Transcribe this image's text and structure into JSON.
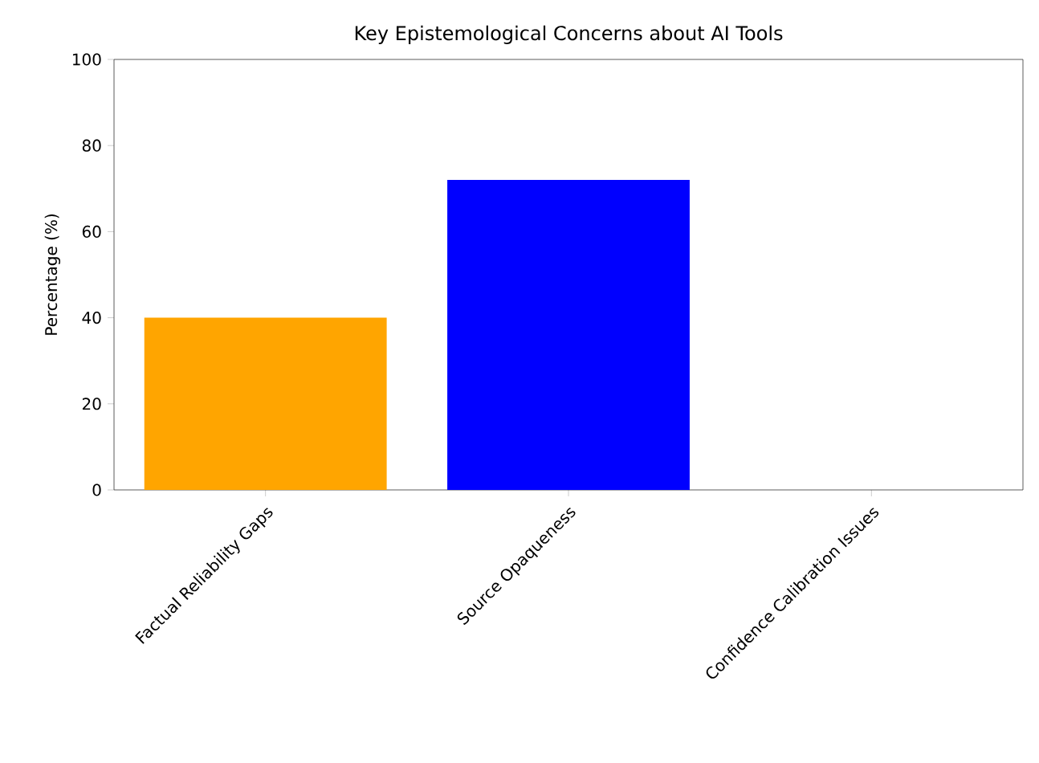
{
  "chart_data": {
    "type": "bar",
    "title": "Key Epistemological Concerns about AI Tools",
    "ylabel": "Percentage (%)",
    "categories": [
      "Factual Reliability Gaps",
      "Source Opaqueness",
      "Confidence Calibration Issues"
    ],
    "values": [
      40,
      72,
      0
    ],
    "colors": [
      "#ffa500",
      "#0000ff",
      "#008000"
    ],
    "ylim": [
      0,
      100
    ],
    "yticks": [
      0,
      20,
      40,
      60,
      80,
      100
    ]
  }
}
